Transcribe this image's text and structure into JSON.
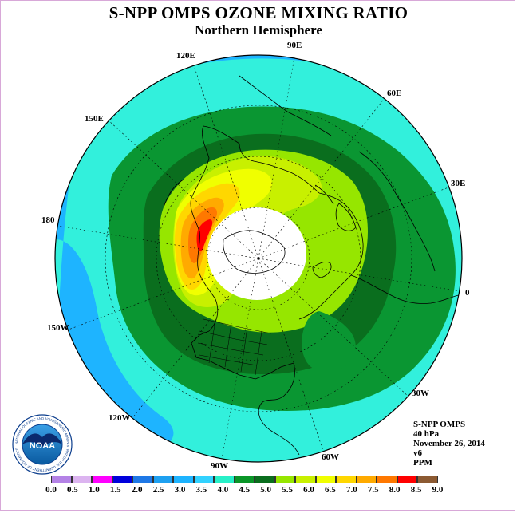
{
  "title": "S-NPP OMPS OZONE MIXING RATIO",
  "subtitle": "Northern Hemisphere",
  "longitude_labels": [
    "90E",
    "60E",
    "30E",
    "0",
    "30W",
    "60W",
    "90W",
    "120W",
    "150W",
    "180",
    "150E",
    "120E"
  ],
  "info": {
    "instrument": "S-NPP OMPS",
    "pressure_level": "40 hPa",
    "date": "November 26, 2014",
    "version": "v6",
    "units": "PPM"
  },
  "logo": {
    "text": "NOAA",
    "ring_text": "NATIONAL OCEANIC AND ATMOSPHERIC ADMINISTRATION U.S. DEPARTMENT OF COMMERCE"
  },
  "colorbar": {
    "ticks": [
      "0.0",
      "0.5",
      "1.0",
      "1.5",
      "2.0",
      "2.5",
      "3.0",
      "3.5",
      "4.0",
      "4.5",
      "5.0",
      "5.5",
      "6.0",
      "6.5",
      "7.0",
      "7.5",
      "8.0",
      "8.5",
      "9.0"
    ],
    "colors": [
      "#b48ce6",
      "#dcb4f0",
      "#ff00ff",
      "#0000e6",
      "#1e6ee6",
      "#1e96f0",
      "#1eb4f5",
      "#28c8f5",
      "#28f0d2",
      "#0ba03c",
      "#0a7828",
      "#5a5a10",
      "#aaf000",
      "#e6ff00",
      "#ffe600",
      "#ffbe00",
      "#ff9600",
      "#ff4600",
      "#e60000",
      "#96501e"
    ],
    "display_colors": [
      "#b482e6",
      "#dcb4f0",
      "#ff00ff",
      "#0000dc",
      "#1e78e6",
      "#1ea0f0",
      "#1eb4ff",
      "#32d2ff",
      "#28f0c8",
      "#0a9628",
      "#0a6e1e",
      "#96e600",
      "#c8f000",
      "#f0ff00",
      "#ffd700",
      "#ffaa00",
      "#ff7800",
      "#ff0000",
      "#8c5a32"
    ]
  },
  "bands": {
    "3.0-3.5": "#1eb4ff",
    "3.5-4.0": "#32f0dc",
    "4.0-4.5": "#0a9632",
    "4.5-5.0": "#0a6e1e",
    "5.0-5.5": "#96e600",
    "5.5-6.0": "#c8f000",
    "6.0-6.5": "#f0ff00",
    "6.5-7.0": "#ffd700",
    "7.0-7.5": "#ffaa00",
    "7.5-8.0": "#ff7800",
    "8.0-8.5": "#ff0000"
  }
}
